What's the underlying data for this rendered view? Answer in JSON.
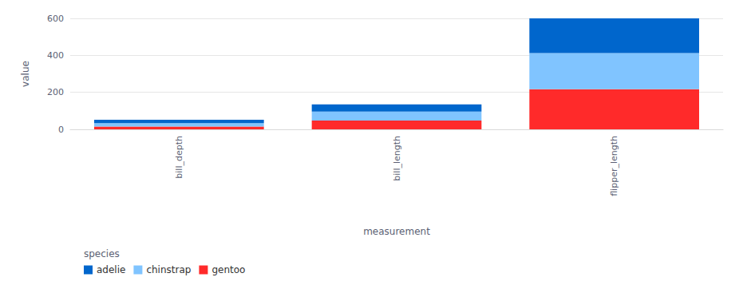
{
  "chart_data": {
    "type": "bar",
    "stacked": true,
    "grid": true,
    "legend": "bottom-left",
    "x_label": "measurement",
    "y_label": "value",
    "legend_title": "species",
    "categories": [
      "bill_depth",
      "bill_length",
      "flipper_length"
    ],
    "series": [
      {
        "name": "adelie",
        "color": "#0066cc",
        "values": [
          18.3,
          38.8,
          188
        ]
      },
      {
        "name": "chinstrap",
        "color": "#80c4ff",
        "values": [
          18.4,
          48.8,
          195
        ]
      },
      {
        "name": "gentoo",
        "color": "#ff2a2a",
        "values": [
          15.0,
          47.5,
          217
        ]
      }
    ],
    "ylim": [
      0,
      600
    ],
    "yticks": [
      0,
      200,
      400,
      600
    ]
  }
}
